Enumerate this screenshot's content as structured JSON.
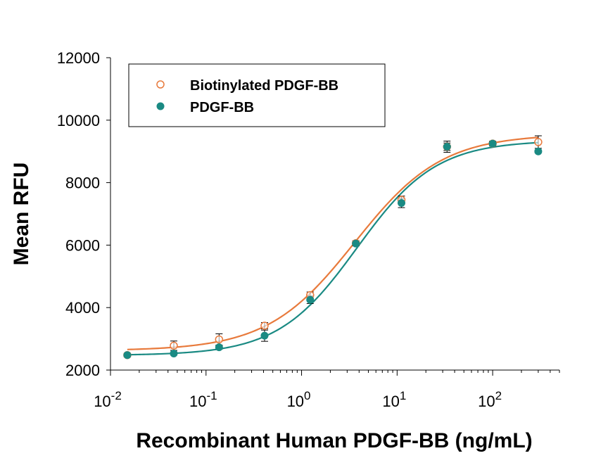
{
  "chart_data": {
    "type": "scatter",
    "title": "",
    "xlabel": "Recombinant Human PDGF-BB (ng/mL)",
    "ylabel": "Mean RFU",
    "x_scale": "log",
    "xlim": [
      0.01,
      500
    ],
    "ylim": [
      2000,
      12000
    ],
    "y_ticks": [
      "2000",
      "4000",
      "6000",
      "8000",
      "10000",
      "12000"
    ],
    "x_ticks": [
      {
        "base": "10",
        "exp": "-2",
        "value": 0.01
      },
      {
        "base": "10",
        "exp": "-1",
        "value": 0.1
      },
      {
        "base": "10",
        "exp": "0",
        "value": 1
      },
      {
        "base": "10",
        "exp": "1",
        "value": 10
      },
      {
        "base": "10",
        "exp": "2",
        "value": 100
      }
    ],
    "grid": false,
    "legend_position": "top-left",
    "series": [
      {
        "name": "Biotinylated PDGF-BB",
        "color": "#e87a3c",
        "marker": "open-circle",
        "x": [
          0.015,
          0.046,
          0.137,
          0.41,
          1.23,
          3.7,
          11.1,
          33.3,
          100,
          300
        ],
        "y": [
          2480,
          2780,
          2980,
          3420,
          4400,
          6060,
          7450,
          9150,
          9250,
          9300
        ],
        "err": [
          60,
          150,
          180,
          100,
          100,
          80,
          120,
          120,
          60,
          200
        ],
        "fit": {
          "bottom": 2620,
          "top": 9550,
          "ec50": 3.6,
          "hill": 0.95
        }
      },
      {
        "name": "PDGF-BB",
        "color": "#1a8a83",
        "marker": "filled-circle",
        "x": [
          0.015,
          0.046,
          0.137,
          0.41,
          1.23,
          3.7,
          11.1,
          33.3,
          100,
          300
        ],
        "y": [
          2480,
          2530,
          2730,
          3100,
          4250,
          6050,
          7350,
          9150,
          9250,
          9000
        ],
        "err": [
          50,
          50,
          60,
          180,
          120,
          70,
          150,
          180,
          80,
          40
        ],
        "fit": {
          "bottom": 2470,
          "top": 9350,
          "ec50": 3.8,
          "hill": 1.05
        }
      }
    ]
  }
}
